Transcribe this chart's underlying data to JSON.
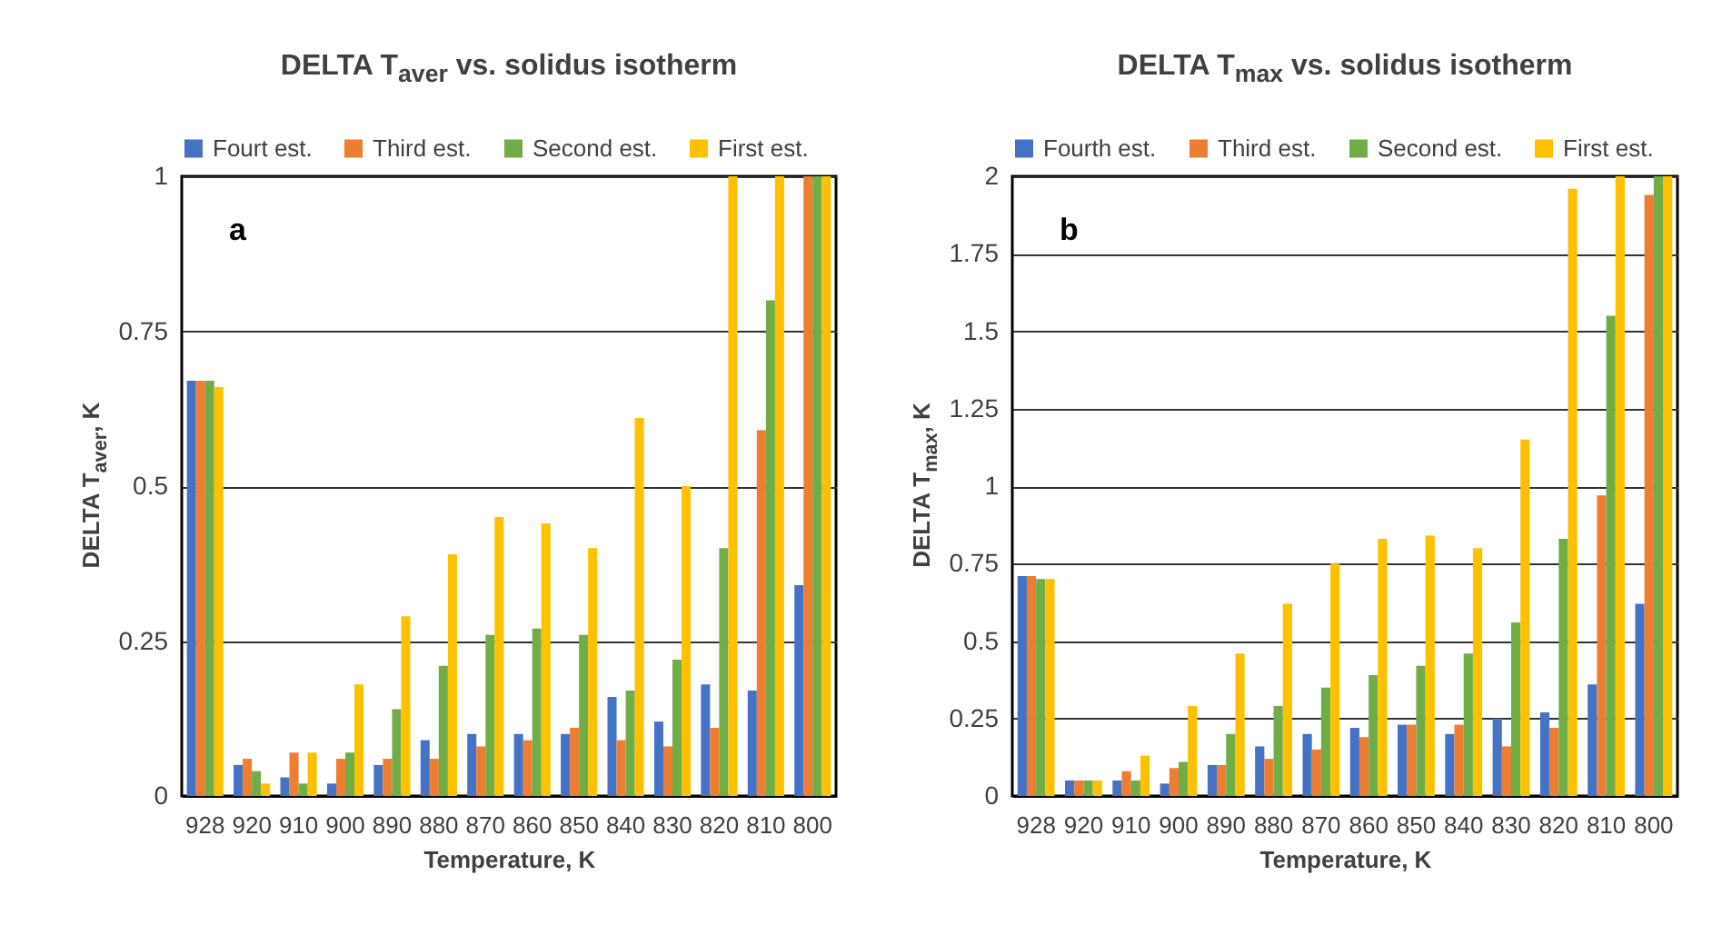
{
  "chart_data": [
    {
      "type": "bar",
      "title": "DELTA T$_{aver}$ vs. solidus isotherm",
      "xlabel": "Temperature, K",
      "ylabel": "DELTA T$_{aver}$, K",
      "categories": [
        "928",
        "920",
        "910",
        "900",
        "890",
        "880",
        "870",
        "860",
        "850",
        "840",
        "830",
        "820",
        "810",
        "800"
      ],
      "series": [
        {
          "name": "Fourt est.",
          "color": "#4472c4",
          "values": [
            0.67,
            0.05,
            0.03,
            0.02,
            0.05,
            0.09,
            0.1,
            0.1,
            0.1,
            0.16,
            0.12,
            0.18,
            0.17,
            0.34
          ]
        },
        {
          "name": "Third est.",
          "color": "#ed7d31",
          "values": [
            0.67,
            0.06,
            0.07,
            0.06,
            0.06,
            0.06,
            0.08,
            0.09,
            0.11,
            0.09,
            0.08,
            0.11,
            0.59,
            1
          ]
        },
        {
          "name": "Second est.",
          "color": "#70ad47",
          "values": [
            0.67,
            0.04,
            0.02,
            0.07,
            0.14,
            0.21,
            0.26,
            0.27,
            0.26,
            0.17,
            0.22,
            0.4,
            0.8,
            1
          ]
        },
        {
          "name": "First est.",
          "color": "#ffc000",
          "values": [
            0.66,
            0.02,
            0.07,
            0.18,
            0.29,
            0.39,
            0.45,
            0.44,
            0.4,
            0.61,
            0.5,
            1,
            1,
            1
          ]
        }
      ],
      "ylim": [
        0,
        1
      ],
      "yticks": [
        0,
        0.25,
        0.5,
        0.75,
        1
      ],
      "grid": "y",
      "legend": "top",
      "annotations": [
        "a"
      ]
    },
    {
      "type": "bar",
      "title": "DELTA T$_{max}$ vs. solidus isotherm",
      "xlabel": "Temperature, K",
      "ylabel": "DELTA T$_{max}$, K",
      "categories": [
        "928",
        "920",
        "910",
        "900",
        "890",
        "880",
        "870",
        "860",
        "850",
        "840",
        "830",
        "820",
        "810",
        "800"
      ],
      "series": [
        {
          "name": "Fourth est.",
          "color": "#4472c4",
          "values": [
            0.71,
            0.05,
            0.05,
            0.04,
            0.1,
            0.16,
            0.2,
            0.22,
            0.23,
            0.2,
            0.25,
            0.27,
            0.36,
            0.62
          ]
        },
        {
          "name": "Third est.",
          "color": "#ed7d31",
          "values": [
            0.71,
            0.05,
            0.08,
            0.09,
            0.1,
            0.12,
            0.15,
            0.19,
            0.23,
            0.23,
            0.16,
            0.22,
            0.97,
            1.94
          ]
        },
        {
          "name": "Second est.",
          "color": "#70ad47",
          "values": [
            0.7,
            0.05,
            0.05,
            0.11,
            0.2,
            0.29,
            0.35,
            0.39,
            0.42,
            0.46,
            0.56,
            0.83,
            1.55,
            2
          ]
        },
        {
          "name": "First est.",
          "color": "#ffc000",
          "values": [
            0.7,
            0.05,
            0.13,
            0.29,
            0.46,
            0.62,
            0.75,
            0.83,
            0.84,
            0.8,
            1.15,
            1.96,
            2,
            2
          ]
        }
      ],
      "ylim": [
        0,
        2
      ],
      "yticks": [
        0,
        0.25,
        0.5,
        0.75,
        1,
        1.25,
        1.5,
        1.75,
        2
      ],
      "grid": "y",
      "legend": "top",
      "annotations": [
        "b"
      ]
    }
  ]
}
